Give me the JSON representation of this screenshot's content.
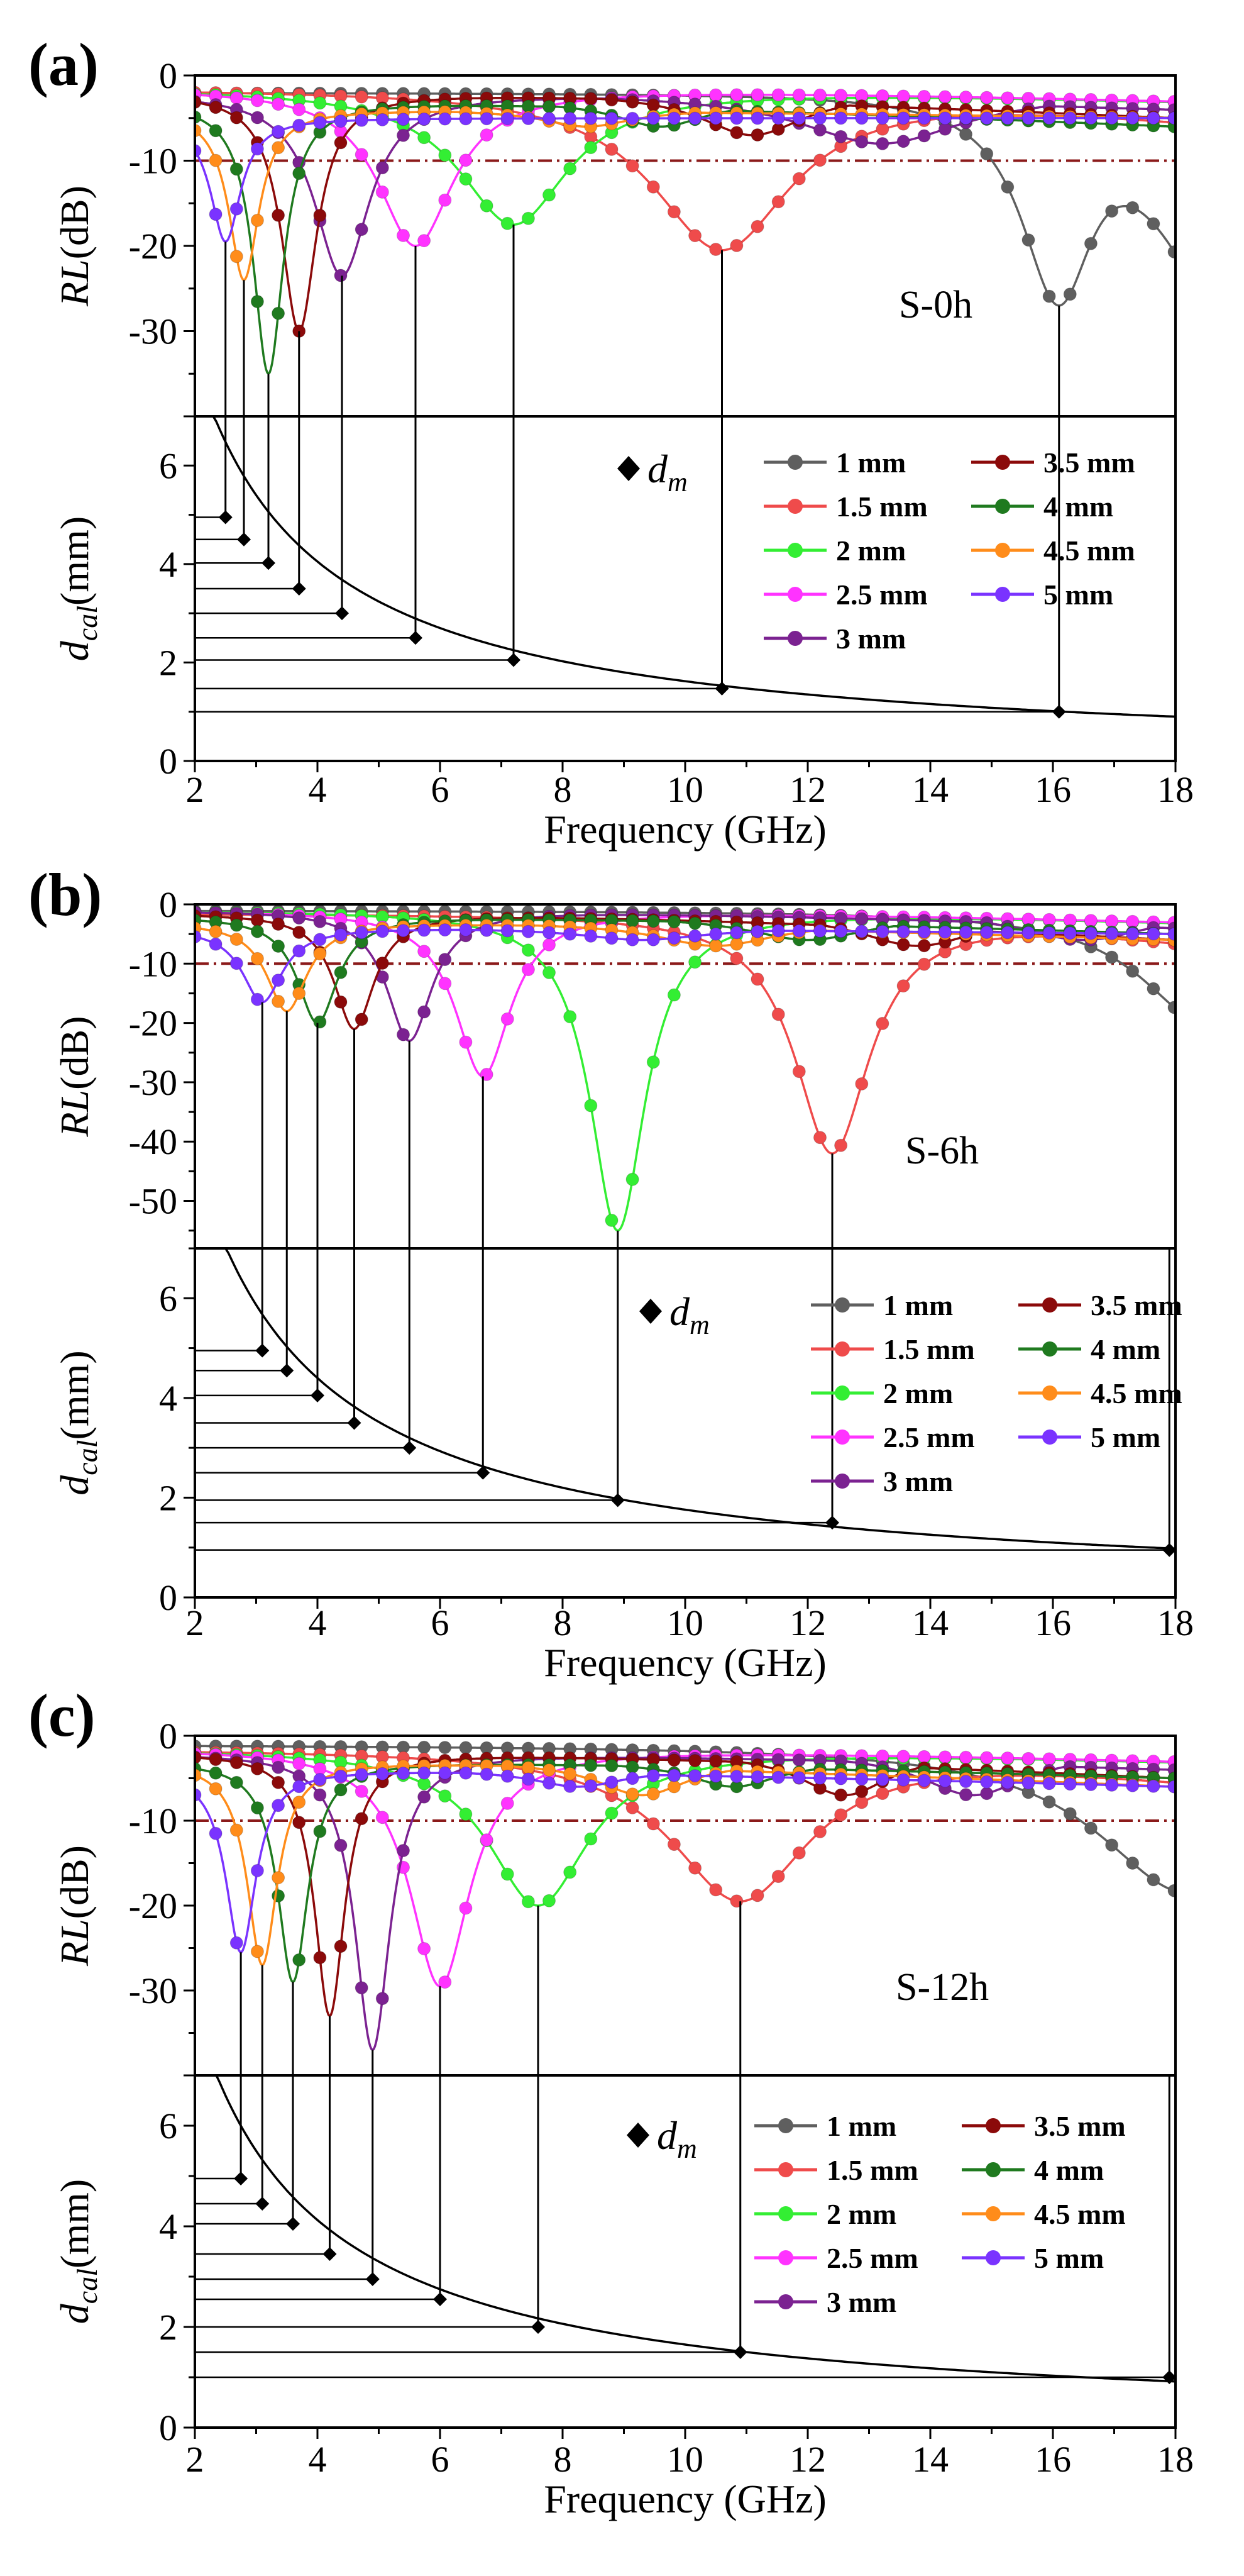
{
  "figure": {
    "panel_labels": [
      "a",
      "b",
      "c"
    ],
    "legend_dm_label": "d",
    "legend_dm_sub": "m",
    "legend_marker_color": "#000000",
    "ref_line_color": "#8b1a1a",
    "thicknesses": [
      {
        "label": "1 mm",
        "value": 1.0,
        "color": "#5f5f5f"
      },
      {
        "label": "1.5 mm",
        "value": 1.5,
        "color": "#ef4b4b"
      },
      {
        "label": "2 mm",
        "value": 2.0,
        "color": "#33ee33"
      },
      {
        "label": "2.5 mm",
        "value": 2.5,
        "color": "#ff33ff"
      },
      {
        "label": "3 mm",
        "value": 3.0,
        "color": "#7b2291"
      },
      {
        "label": "3.5 mm",
        "value": 3.5,
        "color": "#8b0a0a"
      },
      {
        "label": "4 mm",
        "value": 4.0,
        "color": "#1f7a1f"
      },
      {
        "label": "4.5 mm",
        "value": 4.5,
        "color": "#ff8c1a"
      },
      {
        "label": "5 mm",
        "value": 5.0,
        "color": "#7a33ff"
      }
    ]
  },
  "chart_data": [
    {
      "type": "line",
      "panel": "a",
      "sample": "S-0h",
      "title": "",
      "top": {
        "ylabel": "RL(dB)",
        "ylabel_italic": "RL",
        "ylabel_unit": "(dB)",
        "ylim": [
          -40,
          0
        ],
        "yticks": [
          0,
          -10,
          -20,
          -30
        ],
        "ref_line": -10,
        "series": [
          {
            "name": "1 mm",
            "peak_freq": 16.1,
            "min_rl": -27,
            "width": 0.75,
            "tail": -20,
            "low": -2,
            "secondary_min": null
          },
          {
            "name": "1.5 mm",
            "peak_freq": 10.6,
            "min_rl": -20.5,
            "width": 1.4,
            "tail": -5,
            "low": -1.5,
            "secondary_min": null
          },
          {
            "name": "2 mm",
            "peak_freq": 7.2,
            "min_rl": -17.5,
            "width": 1.1,
            "tail": -3,
            "low": -1.5,
            "secondary_min": null
          },
          {
            "name": "2.5 mm",
            "peak_freq": 5.6,
            "min_rl": -20,
            "width": 0.75,
            "tail": -3,
            "low": -1.5,
            "secondary_min": null
          },
          {
            "name": "3 mm",
            "peak_freq": 4.4,
            "min_rl": -23.5,
            "width": 0.55,
            "tail": -4,
            "low": -2,
            "secondary_min": -8
          },
          {
            "name": "3.5 mm",
            "peak_freq": 3.7,
            "min_rl": -30,
            "width": 0.35,
            "tail": -5,
            "low": -2,
            "secondary_min": -7
          },
          {
            "name": "4 mm",
            "peak_freq": 3.2,
            "min_rl": -35,
            "width": 0.3,
            "tail": -6,
            "low": -3,
            "secondary_min": -6
          },
          {
            "name": "4.5 mm",
            "peak_freq": 2.8,
            "min_rl": -24,
            "width": 0.3,
            "tail": -5,
            "low": -4,
            "secondary_min": -6
          },
          {
            "name": "5 mm",
            "peak_freq": 2.5,
            "min_rl": -19.5,
            "width": 0.3,
            "tail": -5,
            "low": -5,
            "secondary_min": -5
          }
        ]
      },
      "bottom": {
        "ylabel": "d_cal(mm)",
        "ylabel_italic": "d",
        "ylabel_sub": "cal",
        "ylabel_unit": "(mm)",
        "ylim": [
          0,
          7
        ],
        "yticks": [
          0,
          2,
          4,
          6
        ],
        "curve_constant": 16.2,
        "dm_points": [
          {
            "freq": 16.1,
            "d": 1.0
          },
          {
            "freq": 10.6,
            "d": 1.47
          },
          {
            "freq": 7.2,
            "d": 2.05
          },
          {
            "freq": 5.6,
            "d": 2.5
          },
          {
            "freq": 4.4,
            "d": 3.0
          },
          {
            "freq": 3.7,
            "d": 3.5
          },
          {
            "freq": 3.2,
            "d": 4.02
          },
          {
            "freq": 2.8,
            "d": 4.5
          },
          {
            "freq": 2.5,
            "d": 4.95
          }
        ]
      },
      "xlabel": "Frequency (GHz)",
      "xlim": [
        2,
        18
      ],
      "xticks": [
        2,
        4,
        6,
        8,
        10,
        12,
        14,
        16,
        18
      ]
    },
    {
      "type": "line",
      "panel": "b",
      "sample": "S-6h",
      "title": "",
      "top": {
        "ylabel": "RL(dB)",
        "ylabel_italic": "RL",
        "ylabel_unit": "(dB)",
        "ylim": [
          -58,
          0
        ],
        "yticks": [
          0,
          -10,
          -20,
          -30,
          -40,
          -50
        ],
        "ref_line": -10,
        "series": [
          {
            "name": "1 mm",
            "peak_freq": 18.5,
            "min_rl": -20,
            "width": 1.3,
            "tail": -13,
            "low": -1,
            "secondary_min": null
          },
          {
            "name": "1.5 mm",
            "peak_freq": 12.4,
            "min_rl": -42,
            "width": 0.75,
            "tail": -6,
            "low": -1.5,
            "secondary_min": null
          },
          {
            "name": "2 mm",
            "peak_freq": 8.9,
            "min_rl": -55,
            "width": 0.55,
            "tail": -3,
            "low": -1,
            "secondary_min": null
          },
          {
            "name": "2.5 mm",
            "peak_freq": 6.7,
            "min_rl": -29,
            "width": 0.55,
            "tail": -3,
            "low": -1,
            "secondary_min": null
          },
          {
            "name": "3 mm",
            "peak_freq": 5.5,
            "min_rl": -23,
            "width": 0.45,
            "tail": -4,
            "low": -1,
            "secondary_min": -6
          },
          {
            "name": "3.5 mm",
            "peak_freq": 4.6,
            "min_rl": -21,
            "width": 0.4,
            "tail": -6,
            "low": -1.5,
            "secondary_min": -7
          },
          {
            "name": "4 mm",
            "peak_freq": 4.0,
            "min_rl": -20,
            "width": 0.4,
            "tail": -5,
            "low": -2,
            "secondary_min": -6
          },
          {
            "name": "4.5 mm",
            "peak_freq": 3.5,
            "min_rl": -18,
            "width": 0.4,
            "tail": -6,
            "low": -3,
            "secondary_min": -7
          },
          {
            "name": "5 mm",
            "peak_freq": 3.1,
            "min_rl": -16.5,
            "width": 0.4,
            "tail": -5,
            "low": -4,
            "secondary_min": -6
          }
        ]
      },
      "bottom": {
        "ylabel": "d_cal(mm)",
        "ylabel_italic": "d",
        "ylabel_sub": "cal",
        "ylabel_unit": "(mm)",
        "ylim": [
          0,
          7
        ],
        "yticks": [
          0,
          2,
          4,
          6
        ],
        "curve_constant": 17.6,
        "dm_points": [
          {
            "freq": 17.9,
            "d": 0.95
          },
          {
            "freq": 12.4,
            "d": 1.5
          },
          {
            "freq": 8.9,
            "d": 1.95
          },
          {
            "freq": 6.7,
            "d": 2.5
          },
          {
            "freq": 5.5,
            "d": 3.0
          },
          {
            "freq": 4.6,
            "d": 3.5
          },
          {
            "freq": 4.0,
            "d": 4.05
          },
          {
            "freq": 3.5,
            "d": 4.55
          },
          {
            "freq": 3.1,
            "d": 4.95
          }
        ]
      },
      "xlabel": "Frequency (GHz)",
      "xlim": [
        2,
        18
      ],
      "xticks": [
        2,
        4,
        6,
        8,
        10,
        12,
        14,
        16,
        18
      ]
    },
    {
      "type": "line",
      "panel": "c",
      "sample": "S-12h",
      "title": "",
      "top": {
        "ylabel": "RL(dB)",
        "ylabel_italic": "RL",
        "ylabel_unit": "(dB)",
        "ylim": [
          -40,
          0
        ],
        "yticks": [
          0,
          -10,
          -20,
          -30
        ],
        "ref_line": -10,
        "series": [
          {
            "name": "1 mm",
            "peak_freq": 18.2,
            "min_rl": -18.5,
            "width": 1.8,
            "tail": -18,
            "low": -1,
            "secondary_min": null
          },
          {
            "name": "1.5 mm",
            "peak_freq": 10.9,
            "min_rl": -19.5,
            "width": 1.4,
            "tail": -5,
            "low": -1.5,
            "secondary_min": null
          },
          {
            "name": "2 mm",
            "peak_freq": 7.6,
            "min_rl": -20,
            "width": 1.0,
            "tail": -3,
            "low": -1.5,
            "secondary_min": null
          },
          {
            "name": "2.5 mm",
            "peak_freq": 6.0,
            "min_rl": -29.5,
            "width": 0.6,
            "tail": -3,
            "low": -1.5,
            "secondary_min": null
          },
          {
            "name": "3 mm",
            "peak_freq": 4.9,
            "min_rl": -37,
            "width": 0.35,
            "tail": -4,
            "low": -2,
            "secondary_min": -7
          },
          {
            "name": "3.5 mm",
            "peak_freq": 4.2,
            "min_rl": -33,
            "width": 0.3,
            "tail": -5,
            "low": -2,
            "secondary_min": -7
          },
          {
            "name": "4 mm",
            "peak_freq": 3.6,
            "min_rl": -29,
            "width": 0.3,
            "tail": -5,
            "low": -3,
            "secondary_min": -6
          },
          {
            "name": "4.5 mm",
            "peak_freq": 3.1,
            "min_rl": -27,
            "width": 0.3,
            "tail": -6,
            "low": -3,
            "secondary_min": -7
          },
          {
            "name": "5 mm",
            "peak_freq": 2.75,
            "min_rl": -25.5,
            "width": 0.3,
            "tail": -6,
            "low": -4,
            "secondary_min": -6
          }
        ]
      },
      "bottom": {
        "ylabel": "d_cal(mm)",
        "ylabel_italic": "d",
        "ylabel_sub": "cal",
        "ylabel_unit": "(mm)",
        "ylim": [
          0,
          7
        ],
        "yticks": [
          0,
          2,
          4,
          6
        ],
        "curve_constant": 16.5,
        "dm_points": [
          {
            "freq": 17.9,
            "d": 1.0
          },
          {
            "freq": 10.9,
            "d": 1.5
          },
          {
            "freq": 7.6,
            "d": 2.0
          },
          {
            "freq": 6.0,
            "d": 2.55
          },
          {
            "freq": 4.9,
            "d": 2.95
          },
          {
            "freq": 4.2,
            "d": 3.45
          },
          {
            "freq": 3.6,
            "d": 4.05
          },
          {
            "freq": 3.1,
            "d": 4.45
          },
          {
            "freq": 2.75,
            "d": 4.95
          }
        ]
      },
      "xlabel": "Frequency (GHz)",
      "xlim": [
        2,
        18
      ],
      "xticks": [
        2,
        4,
        6,
        8,
        10,
        12,
        14,
        16,
        18
      ]
    }
  ]
}
